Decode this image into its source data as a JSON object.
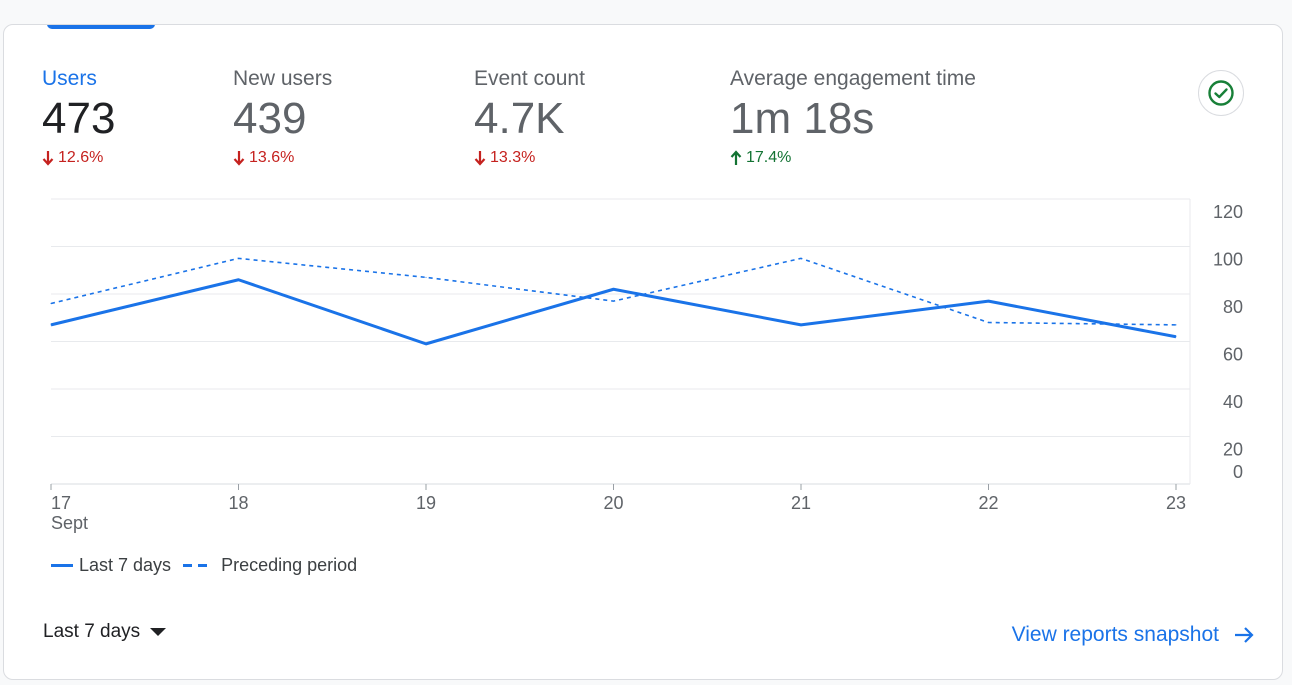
{
  "metrics": [
    {
      "label": "Users",
      "value": "473",
      "change": "12.6%",
      "direction": "down"
    },
    {
      "label": "New users",
      "value": "439",
      "change": "13.6%",
      "direction": "down"
    },
    {
      "label": "Event count",
      "value": "4.7K",
      "change": "13.3%",
      "direction": "down"
    },
    {
      "label": "Average engagement time",
      "value": "1m 18s",
      "change": "17.4%",
      "direction": "up"
    }
  ],
  "icons": {
    "status": "check-circle-icon",
    "arrow_down": "arrow-down-icon",
    "arrow_up": "arrow-up-icon",
    "dropdown": "caret-down-icon",
    "link_arrow": "arrow-right-icon"
  },
  "colors": {
    "accent": "#1a73e8",
    "negative": "#c5221f",
    "positive": "#137333",
    "check": "#188038"
  },
  "chart_data": {
    "type": "line",
    "x": [
      "17",
      "18",
      "19",
      "20",
      "21",
      "22",
      "23"
    ],
    "x_sublabel": "Sept",
    "series": [
      {
        "name": "Last 7 days",
        "style": "solid",
        "values": [
          67,
          86,
          59,
          82,
          67,
          77,
          62
        ]
      },
      {
        "name": "Preceding period",
        "style": "dashed",
        "values": [
          76,
          95,
          87,
          77,
          95,
          68,
          67
        ]
      }
    ],
    "yticks": [
      "120",
      "100",
      "80",
      "60",
      "40",
      "20",
      "0"
    ],
    "ylim": [
      0,
      120
    ]
  },
  "legend": {
    "current": "Last 7 days",
    "previous": "Preceding period"
  },
  "footer": {
    "range_label": "Last 7 days",
    "link_label": "View reports snapshot"
  }
}
